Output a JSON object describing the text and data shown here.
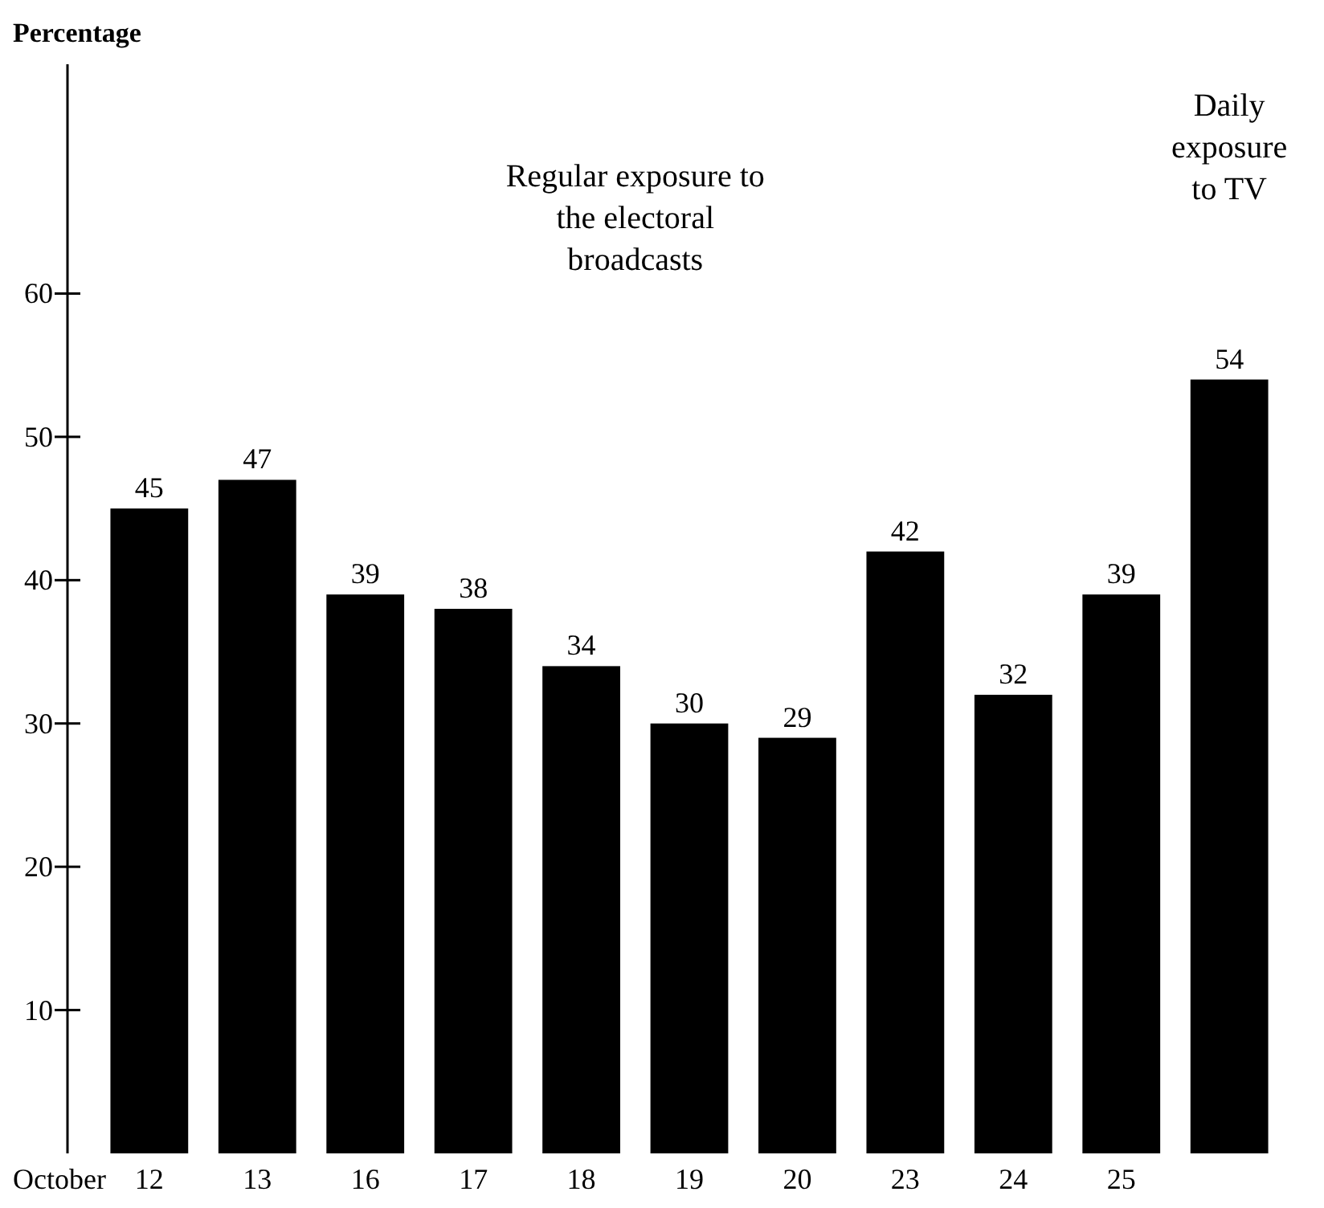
{
  "chart_data": {
    "type": "bar",
    "ylabel": "Percentage",
    "xlabel": "October",
    "categories": [
      "12",
      "13",
      "16",
      "17",
      "18",
      "19",
      "20",
      "23",
      "24",
      "25",
      null
    ],
    "values": [
      45,
      47,
      39,
      38,
      34,
      30,
      29,
      42,
      32,
      39,
      54
    ],
    "color": "#000000",
    "data_labels": true,
    "grid": false,
    "ylim": [
      0,
      76
    ],
    "yticks": [
      10,
      20,
      30,
      40,
      50,
      60
    ],
    "annotations": [
      "Regular exposure to the electoral broadcasts",
      "Daily exposure to TV"
    ]
  }
}
